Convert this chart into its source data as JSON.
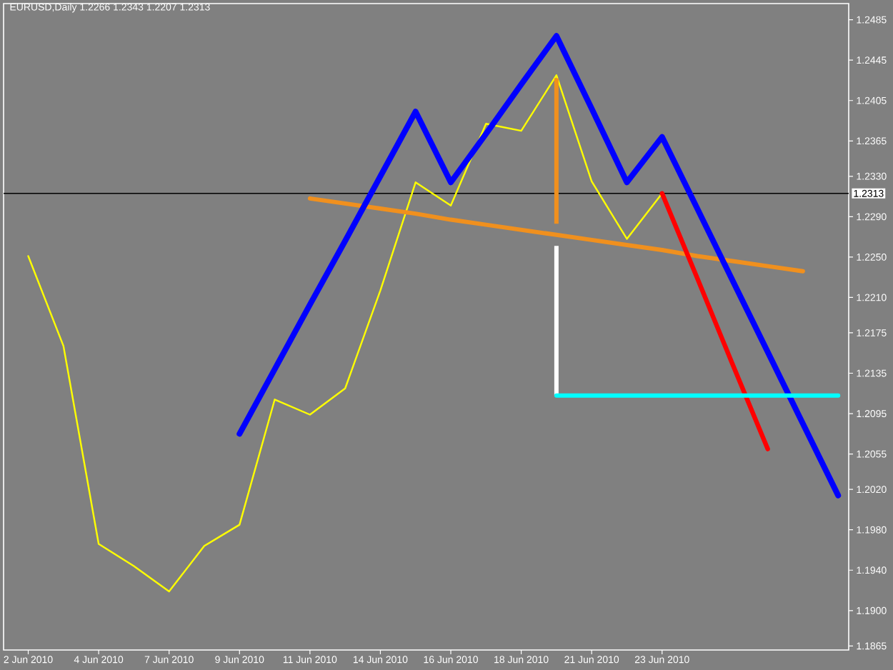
{
  "chart_data": {
    "type": "line",
    "title": "EURUSD,Daily 1.2266 1.2343 1.2207 1.2313",
    "categories": [
      "2 Jun 2010",
      null,
      "4 Jun 2010",
      null,
      "7 Jun 2010",
      null,
      "9 Jun 2010",
      null,
      "11 Jun 2010",
      null,
      "14 Jun 2010",
      null,
      "16 Jun 2010",
      null,
      "18 Jun 2010",
      null,
      "21 Jun 2010",
      null,
      "23 Jun 2010",
      null,
      null,
      null,
      null,
      null
    ],
    "ylim": [
      1.1861,
      1.2501
    ],
    "yticks": [
      1.2485,
      1.2445,
      1.2405,
      1.2365,
      {
        "value": 1.233,
        "label": "1.2330"
      },
      {
        "value": 1.229,
        "label": "1.2290"
      },
      {
        "value": 1.225,
        "label": "1.2250"
      },
      {
        "value": 1.221,
        "label": "1.2210"
      },
      1.2175,
      1.2135,
      1.2095,
      1.2055,
      {
        "value": 1.202,
        "label": "1.2020"
      },
      {
        "value": 1.198,
        "label": "1.1980"
      },
      {
        "value": 1.194,
        "label": "1.1940"
      },
      {
        "value": 1.19,
        "label": "1.1900"
      },
      1.1865
    ],
    "series": [
      {
        "color": "#ffff00",
        "values": [
          1.2251,
          1.2162,
          1.1966,
          1.1944,
          1.1919,
          1.1964,
          1.1985,
          1.2109,
          1.2094,
          1.212,
          1.2217,
          1.2324,
          1.2301,
          1.2382,
          1.2375,
          1.243,
          1.2325,
          1.2268,
          1.2313,
          null,
          null,
          null,
          null,
          null
        ]
      },
      {
        "color": "#f0901e",
        "values": [
          null,
          null,
          null,
          null,
          null,
          null,
          null,
          null,
          1.2308,
          1.2303,
          1.2298,
          1.2293,
          1.2287,
          1.2282,
          1.2277,
          1.2272,
          1.2267,
          1.2262,
          1.2257,
          1.2251,
          1.2246,
          1.2241,
          1.2236,
          null
        ]
      },
      {
        "type": "bar",
        "color": "#f0901e",
        "values": [
          null,
          null,
          null,
          null,
          null,
          null,
          null,
          null,
          null,
          null,
          null,
          null,
          null,
          null,
          null,
          0.0144,
          null,
          null,
          null,
          null,
          null,
          null,
          null,
          null
        ],
        "base": [
          null,
          null,
          null,
          null,
          null,
          null,
          null,
          null,
          null,
          null,
          null,
          null,
          null,
          null,
          null,
          1.2283,
          null,
          null,
          null,
          null,
          null,
          null,
          null,
          null
        ]
      },
      {
        "type": "bar",
        "color": "#ffffff",
        "values": [
          null,
          null,
          null,
          null,
          null,
          null,
          null,
          null,
          null,
          null,
          null,
          null,
          null,
          null,
          null,
          0.0148,
          null,
          null,
          null,
          null,
          null,
          null,
          null,
          null
        ],
        "base": [
          null,
          null,
          null,
          null,
          null,
          null,
          null,
          null,
          null,
          null,
          null,
          null,
          null,
          null,
          null,
          1.2113,
          null,
          null,
          null,
          null,
          null,
          null,
          null,
          null
        ]
      },
      {
        "color": "#ff0000",
        "values": [
          null,
          null,
          null,
          null,
          null,
          null,
          null,
          null,
          null,
          null,
          null,
          null,
          null,
          null,
          null,
          null,
          null,
          null,
          1.2313,
          1.2229,
          1.2144,
          1.206,
          null,
          null
        ]
      },
      {
        "color": "#0000ff",
        "values": [
          null,
          null,
          null,
          null,
          null,
          null,
          1.2075,
          1.2139,
          1.2203,
          1.2266,
          1.233,
          1.2394,
          1.2324,
          1.2372,
          1.2421,
          1.2469,
          1.2397,
          1.2324,
          1.2369,
          1.2298,
          1.2227,
          1.2156,
          1.2085,
          1.2014
        ]
      },
      {
        "color": "#00ffff",
        "values": [
          null,
          null,
          null,
          null,
          null,
          null,
          null,
          null,
          null,
          null,
          null,
          null,
          null,
          null,
          null,
          1.2113,
          1.2113,
          1.2113,
          1.2113,
          1.2113,
          1.2113,
          1.2113,
          1.2113,
          1.2113
        ]
      }
    ],
    "ref_lines": [
      {
        "axis": "y",
        "value": 1.2313,
        "label": "1.2313",
        "color": "#000000"
      }
    ],
    "line_style": "solid"
  }
}
